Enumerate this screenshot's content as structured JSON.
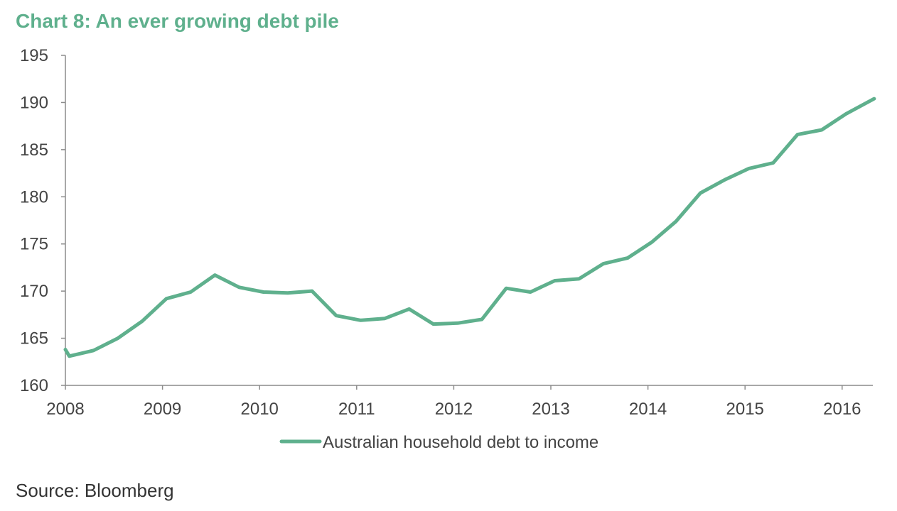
{
  "chart_data": {
    "type": "line",
    "title": "Chart 8: An ever growing debt pile",
    "xlabel": "",
    "ylabel": "",
    "xlim": [
      2008,
      2016.33
    ],
    "ylim": [
      160,
      195
    ],
    "x_ticks": [
      "2008",
      "2009",
      "2010",
      "2011",
      "2012",
      "2013",
      "2014",
      "2015",
      "2016"
    ],
    "y_ticks": [
      "160",
      "165",
      "170",
      "175",
      "180",
      "185",
      "190",
      "195"
    ],
    "legend_position": "bottom-center",
    "grid": false,
    "series": [
      {
        "name": "Australian household debt to income",
        "color": "#5fb08d",
        "points": [
          {
            "x": 2008.0,
            "y": 163.8
          },
          {
            "x": 2008.04,
            "y": 163.1
          },
          {
            "x": 2008.29,
            "y": 163.7
          },
          {
            "x": 2008.54,
            "y": 165.0
          },
          {
            "x": 2008.79,
            "y": 166.8
          },
          {
            "x": 2009.04,
            "y": 169.2
          },
          {
            "x": 2009.29,
            "y": 169.9
          },
          {
            "x": 2009.54,
            "y": 171.7
          },
          {
            "x": 2009.79,
            "y": 170.4
          },
          {
            "x": 2010.04,
            "y": 169.9
          },
          {
            "x": 2010.29,
            "y": 169.8
          },
          {
            "x": 2010.54,
            "y": 170.0
          },
          {
            "x": 2010.79,
            "y": 167.4
          },
          {
            "x": 2011.04,
            "y": 166.9
          },
          {
            "x": 2011.29,
            "y": 167.1
          },
          {
            "x": 2011.54,
            "y": 168.1
          },
          {
            "x": 2011.79,
            "y": 166.5
          },
          {
            "x": 2012.04,
            "y": 166.6
          },
          {
            "x": 2012.29,
            "y": 167.0
          },
          {
            "x": 2012.54,
            "y": 170.3
          },
          {
            "x": 2012.79,
            "y": 169.9
          },
          {
            "x": 2013.04,
            "y": 171.1
          },
          {
            "x": 2013.29,
            "y": 171.3
          },
          {
            "x": 2013.54,
            "y": 172.9
          },
          {
            "x": 2013.79,
            "y": 173.5
          },
          {
            "x": 2014.04,
            "y": 175.2
          },
          {
            "x": 2014.29,
            "y": 177.4
          },
          {
            "x": 2014.54,
            "y": 180.4
          },
          {
            "x": 2014.79,
            "y": 181.8
          },
          {
            "x": 2015.04,
            "y": 183.0
          },
          {
            "x": 2015.29,
            "y": 183.6
          },
          {
            "x": 2015.54,
            "y": 186.6
          },
          {
            "x": 2015.79,
            "y": 187.1
          },
          {
            "x": 2016.04,
            "y": 188.8
          },
          {
            "x": 2016.33,
            "y": 190.4
          }
        ]
      }
    ]
  },
  "source": "Source: Bloomberg"
}
